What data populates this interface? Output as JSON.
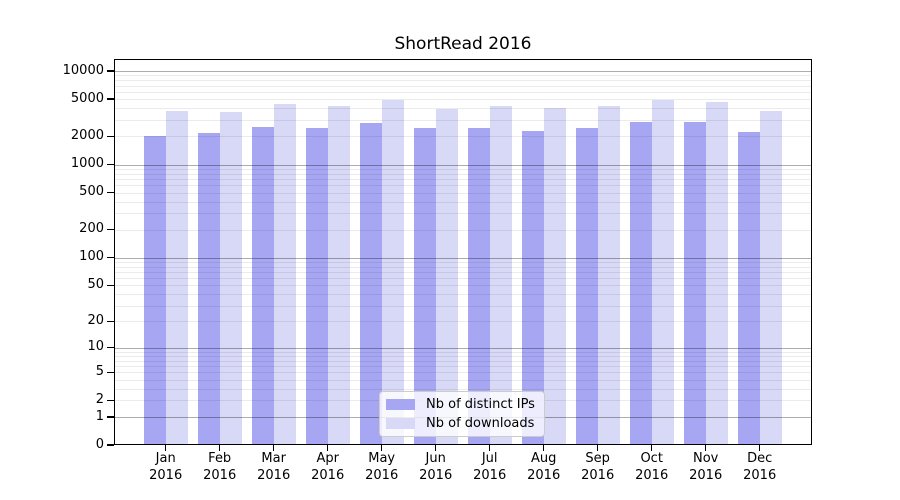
{
  "chart_data": {
    "type": "bar",
    "title": "ShortRead 2016",
    "xlabel": "",
    "ylabel": "",
    "y_scale": "log10(value+1)",
    "ylim": [
      0,
      13400
    ],
    "grid": "horizontal, major log decades darker, minor 2-9 per decade faint, drawn over bars",
    "legend_position": "lower center inside plot",
    "categories": [
      "Jan",
      "Feb",
      "Mar",
      "Apr",
      "May",
      "Jun",
      "Jul",
      "Aug",
      "Sep",
      "Oct",
      "Nov",
      "Dec"
    ],
    "category_year": "2016",
    "ytick_values": [
      10000,
      5000,
      2000,
      1000,
      500,
      200,
      100,
      50,
      20,
      10,
      5,
      2,
      1,
      0
    ],
    "ytick_labels": [
      "10000",
      "5000",
      "2000",
      "1000",
      "500",
      "200",
      "100",
      "50",
      "20",
      "10",
      "5",
      "2",
      "1",
      "0"
    ],
    "series": [
      {
        "name": "Nb of distinct IPs",
        "color": "#a6a6f2",
        "values": [
          2000,
          2200,
          2520,
          2470,
          2800,
          2460,
          2480,
          2260,
          2450,
          2840,
          2830,
          2210
        ]
      },
      {
        "name": "Nb of downloads",
        "color": "#d8d8f7",
        "values": [
          3700,
          3630,
          4400,
          4280,
          4960,
          3980,
          4250,
          4080,
          4200,
          4850,
          4730,
          3720
        ]
      }
    ]
  }
}
